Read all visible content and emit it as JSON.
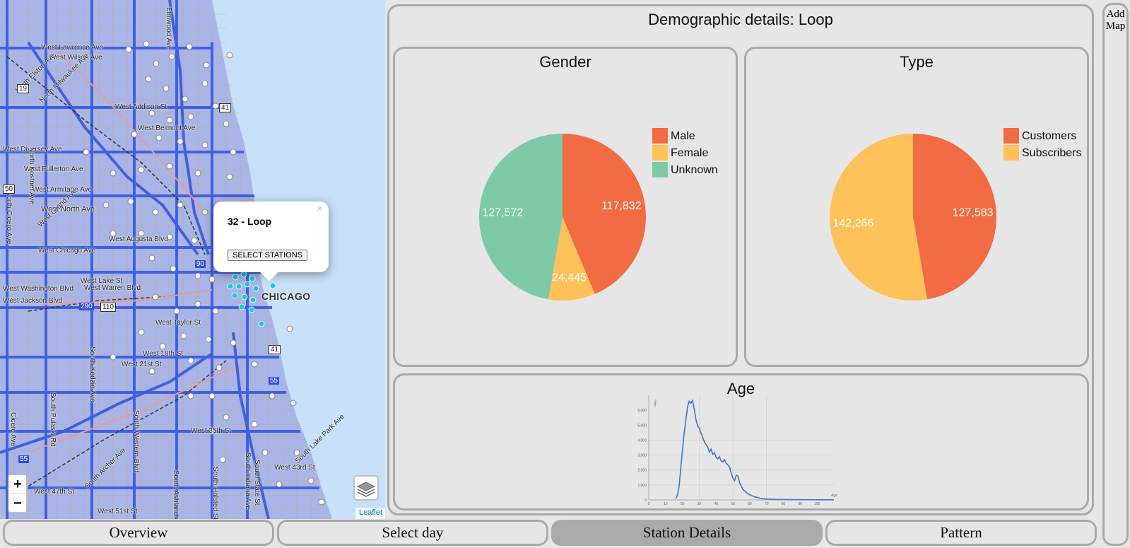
{
  "map": {
    "popup": {
      "title": "32 - Loop",
      "button_label": "SELECT STATIONS",
      "close_label": "×"
    },
    "zoom_in_label": "+",
    "zoom_out_label": "−",
    "attribution": "Leaflet",
    "city_label": "CHICAGO",
    "street_labels": [
      "West Lawrence Ave",
      "West Wilson Ave",
      "West Addison St",
      "West Belmont Ave",
      "West Diversey Ave",
      "West Fullerton Ave",
      "West Armitage Ave",
      "West North Ave",
      "West Grand Ave",
      "West Augusta Blvd",
      "West Chicago Ave",
      "West Lake St",
      "West Warren Blvd",
      "West Washington Blvd",
      "West Jackson Blvd",
      "West Taylor St",
      "West 18th St",
      "West 21st St",
      "West 35th St",
      "West 43rd St",
      "West 47th St",
      "West 51st St",
      "South Archer Ave",
      "North Milwaukee Ave",
      "North Elston Ave",
      "North Cicero Ave",
      "South Pulaski Rd",
      "South Kedzie Ave",
      "South Ashland Ave",
      "South Halsted St",
      "South State St",
      "South Indiana Ave",
      "South Lake Park Ave",
      "Cicero Ave",
      "Elmwood Ave",
      "South Western Blvd",
      "North Kostner Ave"
    ],
    "highway_shields": [
      "19",
      "50",
      "290",
      "110",
      "90",
      "41",
      "55",
      "41",
      "55"
    ],
    "colors": {
      "water": "#c7e1fa",
      "land": "#a9b5e6",
      "roads": "#2f52e0",
      "station": "#ffffff",
      "selected_station": "#1ec8e0"
    }
  },
  "demographics": {
    "heading": "Demographic details: Loop",
    "gender": {
      "title": "Gender",
      "legend": [
        "Male",
        "Female",
        "Unknown"
      ]
    },
    "type": {
      "title": "Type",
      "legend": [
        "Customers",
        "Subscribers"
      ]
    },
    "age": {
      "title": "Age",
      "x_label": "Age",
      "y_label": "Rides"
    }
  },
  "add_map_label": "Add Map",
  "tabs": [
    {
      "label": "Overview",
      "active": false
    },
    {
      "label": "Select day",
      "active": false
    },
    {
      "label": "Station Details",
      "active": true
    },
    {
      "label": "Pattern",
      "active": false
    }
  ],
  "chart_data": [
    {
      "type": "pie",
      "title": "Gender",
      "categories": [
        "Male",
        "Female",
        "Unknown"
      ],
      "values": [
        117832,
        24445,
        127572
      ],
      "colors": [
        "#f26b43",
        "#ffc15a",
        "#7ec9a6"
      ],
      "legend": "top-right"
    },
    {
      "type": "pie",
      "title": "Type",
      "categories": [
        "Customers",
        "Subscribers"
      ],
      "values": [
        127583,
        142266
      ],
      "colors": [
        "#f26b43",
        "#ffc15a"
      ],
      "legend": "top-right"
    },
    {
      "type": "line",
      "title": "Age",
      "xlabel": "Age",
      "ylabel": "Rides",
      "xlim": [
        0,
        110
      ],
      "ylim": [
        0,
        7000
      ],
      "x_ticks": [
        "0",
        "10",
        "20",
        "30",
        "40",
        "50",
        "60",
        "70",
        "80",
        "90",
        "100"
      ],
      "y_ticks": [
        "0",
        "1,000",
        "2,000",
        "3,000",
        "4,000",
        "5,000",
        "6,000"
      ],
      "grid": true,
      "series": [
        {
          "name": "",
          "color": "#3a78c3",
          "x": [
            16,
            17,
            18,
            19,
            20,
            21,
            22,
            23,
            24,
            25,
            26,
            27,
            28,
            29,
            30,
            31,
            32,
            33,
            34,
            35,
            36,
            37,
            38,
            39,
            40,
            41,
            42,
            43,
            44,
            45,
            46,
            47,
            48,
            49,
            50,
            51,
            52,
            53,
            54,
            55,
            56,
            57,
            58,
            59,
            60,
            61,
            62,
            63,
            64,
            65,
            66,
            67,
            68,
            69,
            70,
            72,
            74,
            76,
            78,
            80,
            85,
            90,
            95,
            100,
            110
          ],
          "values": [
            80,
            300,
            900,
            2100,
            3300,
            4400,
            5300,
            6200,
            6600,
            6450,
            6650,
            6100,
            5400,
            4950,
            4800,
            4500,
            4200,
            3900,
            3700,
            3550,
            3200,
            3400,
            3050,
            3150,
            2850,
            2750,
            2900,
            2600,
            2550,
            2700,
            2450,
            2350,
            2200,
            1800,
            1450,
            1300,
            1650,
            1600,
            1150,
            900,
            700,
            600,
            500,
            400,
            350,
            300,
            250,
            200,
            180,
            150,
            120,
            100,
            80,
            70,
            60,
            50,
            40,
            30,
            30,
            25,
            20,
            15,
            15,
            10,
            10
          ]
        }
      ]
    }
  ]
}
